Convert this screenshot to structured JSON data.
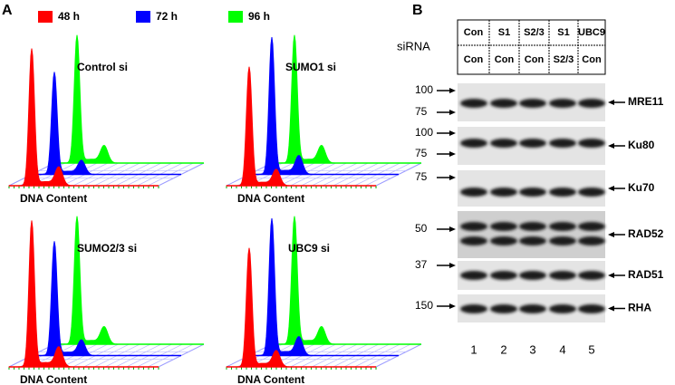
{
  "panel_a": {
    "label": "A",
    "legend": [
      {
        "name": "48 h",
        "color": "#ff0000"
      },
      {
        "name": "72 h",
        "color": "#0000ff"
      },
      {
        "name": "96 h",
        "color": "#00ff00"
      }
    ],
    "plots": [
      {
        "title": "Control si",
        "x_label": "DNA Content"
      },
      {
        "title": "SUMO1 si",
        "x_label": "DNA Content"
      },
      {
        "title": "SUMO2/3 si",
        "x_label": "DNA Content"
      },
      {
        "title": "UBC9 si",
        "x_label": "DNA Content"
      }
    ]
  },
  "panel_b": {
    "label": "B",
    "row_label": "siRNA",
    "sirna_row1": [
      "Con",
      "S1",
      "S2/3",
      "S1",
      "UBC9"
    ],
    "sirna_row2": [
      "Con",
      "Con",
      "Con",
      "S2/3",
      "Con"
    ],
    "blots": [
      {
        "name": "MRE11",
        "markers": [
          100,
          75
        ]
      },
      {
        "name": "Ku80",
        "markers": [
          100,
          75
        ]
      },
      {
        "name": "Ku70",
        "markers": [
          75
        ]
      },
      {
        "name": "RAD52",
        "markers": [
          50
        ]
      },
      {
        "name": "RAD51",
        "markers": [
          37
        ]
      },
      {
        "name": "RHA",
        "markers": [
          150
        ]
      }
    ],
    "lanes": [
      "1",
      "2",
      "3",
      "4",
      "5"
    ]
  }
}
